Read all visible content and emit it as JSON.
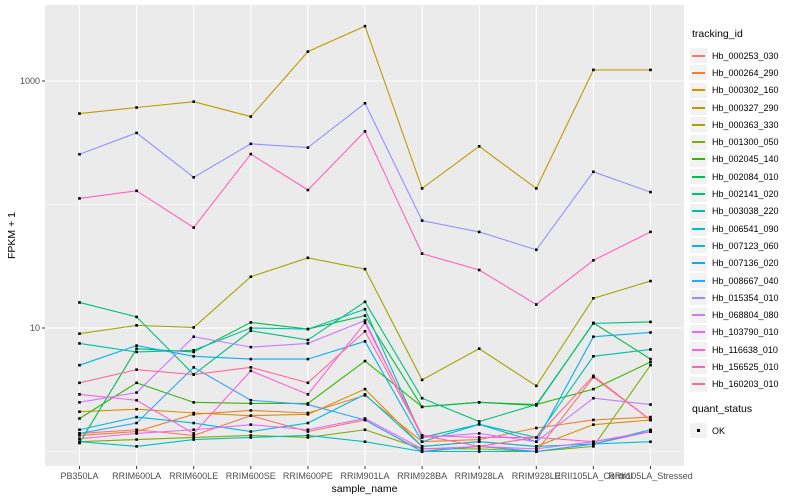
{
  "figure": {
    "panel_background": "#EBEBEB",
    "gridline_color": "#FFFFFF",
    "axis_text_color": "#4D4D4D",
    "axis_title_color": "#000000",
    "tick_color": "#333333",
    "point_color": "#000000"
  },
  "legend": {
    "tracking_title": "tracking_id",
    "quant_title": "quant_status",
    "quant_label": "OK"
  },
  "chart_data": {
    "type": "line",
    "x_label": "sample_name",
    "y_label": "FPKM + 1",
    "y_scale": "log10",
    "grid": true,
    "legend_position": "right",
    "point_shape": "small-black-square",
    "y_ticks": [
      {
        "value": 1000,
        "label": "1000"
      },
      {
        "value": 10,
        "label": "10"
      }
    ],
    "y_minor": [
      100,
      1
    ],
    "categories": [
      "PB350LA",
      "RRIM600LA",
      "RRIM600LE",
      "RRIM600SE",
      "RRIM600PE",
      "RRIM901LA",
      "RRIM928BA",
      "RRIM928LA",
      "RRIM928LE",
      "RRII105LA_Control",
      "RRII105LA_Stressed"
    ],
    "series": [
      {
        "name": "Hb_000253_030",
        "color": "#F8766D",
        "values": [
          1.4,
          1.5,
          1.35,
          1.95,
          1.45,
          1.8,
          1.0,
          1.1,
          1.0,
          4.0,
          1.8
        ]
      },
      {
        "name": "Hb_000264_290",
        "color": "#EA8331",
        "values": [
          1.35,
          1.45,
          2.0,
          2.15,
          2.05,
          2.85,
          1.2,
          1.25,
          1.55,
          1.8,
          1.9
        ]
      },
      {
        "name": "Hb_000302_160",
        "color": "#D89000",
        "values": [
          2.1,
          2.2,
          2.05,
          1.95,
          2.0,
          3.2,
          1.1,
          1.2,
          1.1,
          1.65,
          1.8
        ]
      },
      {
        "name": "Hb_000327_290",
        "color": "#C09B00",
        "values": [
          545,
          610,
          680,
          515,
          1730,
          2780,
          135,
          296,
          135,
          1230,
          1230
        ]
      },
      {
        "name": "Hb_000363_330",
        "color": "#A3A500",
        "values": [
          9.0,
          10.5,
          10.1,
          26,
          37,
          30,
          3.8,
          6.8,
          3.4,
          17.4,
          24
        ]
      },
      {
        "name": "Hb_001300_050",
        "color": "#7CAE00",
        "values": [
          1.2,
          1.25,
          1.3,
          1.35,
          1.3,
          1.5,
          1.05,
          1.05,
          1.0,
          1.1,
          5.0
        ]
      },
      {
        "name": "Hb_002045_140",
        "color": "#39B600",
        "values": [
          1.85,
          3.6,
          2.5,
          2.45,
          2.45,
          5.4,
          2.3,
          2.5,
          2.4,
          3.2,
          5.3
        ]
      },
      {
        "name": "Hb_002084_010",
        "color": "#00BB4E",
        "values": [
          1.17,
          6.8,
          6.4,
          11.1,
          9.8,
          12.6,
          2.3,
          2.5,
          2.36,
          11.0,
          5.6
        ]
      },
      {
        "name": "Hb_002141_020",
        "color": "#00BF7D",
        "values": [
          16.1,
          12.3,
          4.2,
          9.5,
          8.0,
          16.3,
          2.7,
          1.75,
          2.4,
          10.9,
          11.2
        ]
      },
      {
        "name": "Hb_003038_220",
        "color": "#00C1A3",
        "values": [
          7.5,
          6.4,
          6.6,
          10.0,
          9.8,
          14.2,
          1.3,
          1.66,
          1.3,
          5.9,
          6.7
        ]
      },
      {
        "name": "Hb_006541_090",
        "color": "#00BFC4",
        "values": [
          1.2,
          1.1,
          1.25,
          1.3,
          1.35,
          1.2,
          1.0,
          1.0,
          1.0,
          1.15,
          1.2
        ]
      },
      {
        "name": "Hb_007123_060",
        "color": "#00BAE0",
        "values": [
          1.5,
          1.9,
          1.7,
          1.45,
          1.7,
          2.9,
          1.1,
          1.2,
          1.1,
          1.15,
          1.5
        ]
      },
      {
        "name": "Hb_007136_020",
        "color": "#00B0F6",
        "values": [
          5.0,
          7.2,
          5.9,
          5.6,
          5.6,
          7.8,
          1.2,
          1.66,
          1.2,
          8.5,
          9.2
        ]
      },
      {
        "name": "Hb_008667_040",
        "color": "#35A2FF",
        "values": [
          1.4,
          1.7,
          4.8,
          2.6,
          2.4,
          1.8,
          1.0,
          1.1,
          1.0,
          1.15,
          1.45
        ]
      },
      {
        "name": "Hb_015354_010",
        "color": "#9590FF",
        "values": [
          255,
          380,
          166,
          310,
          289,
          660,
          74,
          60,
          43,
          184,
          126
        ]
      },
      {
        "name": "Hb_068804_080",
        "color": "#C77CFF",
        "values": [
          2.5,
          3.0,
          8.5,
          7.0,
          7.5,
          11.5,
          1.3,
          1.4,
          1.2,
          2.7,
          2.4
        ]
      },
      {
        "name": "Hb_103790_010",
        "color": "#E76BF3",
        "values": [
          1.27,
          1.4,
          1.5,
          1.65,
          1.5,
          1.85,
          1.05,
          1.1,
          1.05,
          1.2,
          1.45
        ]
      },
      {
        "name": "Hb_116638_010",
        "color": "#FA62DB",
        "values": [
          2.9,
          2.6,
          1.4,
          4.5,
          2.9,
          11.0,
          1.35,
          1.3,
          1.3,
          1.2,
          1.45
        ]
      },
      {
        "name": "Hb_156525_010",
        "color": "#FF62BC",
        "values": [
          112,
          129,
          65,
          256,
          131,
          391,
          40,
          29.5,
          15.5,
          35.3,
          60
        ]
      },
      {
        "name": "Hb_160203_010",
        "color": "#FF6A98",
        "values": [
          3.6,
          4.6,
          4.2,
          4.8,
          3.6,
          9.4,
          1.35,
          1.1,
          1.3,
          4.1,
          1.8
        ]
      }
    ]
  }
}
